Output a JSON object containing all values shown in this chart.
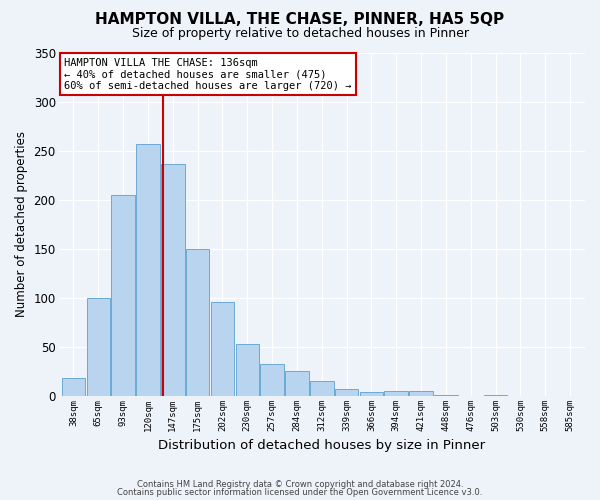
{
  "title": "HAMPTON VILLA, THE CHASE, PINNER, HA5 5QP",
  "subtitle": "Size of property relative to detached houses in Pinner",
  "xlabel": "Distribution of detached houses by size in Pinner",
  "ylabel": "Number of detached properties",
  "bar_values": [
    18,
    100,
    205,
    257,
    236,
    150,
    96,
    53,
    33,
    26,
    15,
    7,
    4,
    5,
    5,
    1,
    0,
    1,
    0,
    0,
    0
  ],
  "bar_labels": [
    "38sqm",
    "65sqm",
    "93sqm",
    "120sqm",
    "147sqm",
    "175sqm",
    "202sqm",
    "230sqm",
    "257sqm",
    "284sqm",
    "312sqm",
    "339sqm",
    "366sqm",
    "394sqm",
    "421sqm",
    "448sqm",
    "476sqm",
    "503sqm",
    "530sqm",
    "558sqm",
    "585sqm"
  ],
  "bar_color": "#b8d4ee",
  "bar_edge_color": "#6aaad4",
  "property_line_index": 4,
  "property_line_color": "#cc0000",
  "annotation_line1": "HAMPTON VILLA THE CHASE: 136sqm",
  "annotation_line2": "← 40% of detached houses are smaller (475)",
  "annotation_line3": "60% of semi-detached houses are larger (720) →",
  "annotation_box_color": "#ffffff",
  "annotation_box_edge_color": "#cc0000",
  "ylim": [
    0,
    350
  ],
  "yticks": [
    0,
    50,
    100,
    150,
    200,
    250,
    300,
    350
  ],
  "footer_line1": "Contains HM Land Registry data © Crown copyright and database right 2024.",
  "footer_line2": "Contains public sector information licensed under the Open Government Licence v3.0.",
  "background_color": "#eef2f9",
  "plot_bg_color": "#eef2f9",
  "title_fontsize": 11,
  "subtitle_fontsize": 9,
  "ylabel_fontsize": 8.5,
  "xlabel_fontsize": 9.5
}
